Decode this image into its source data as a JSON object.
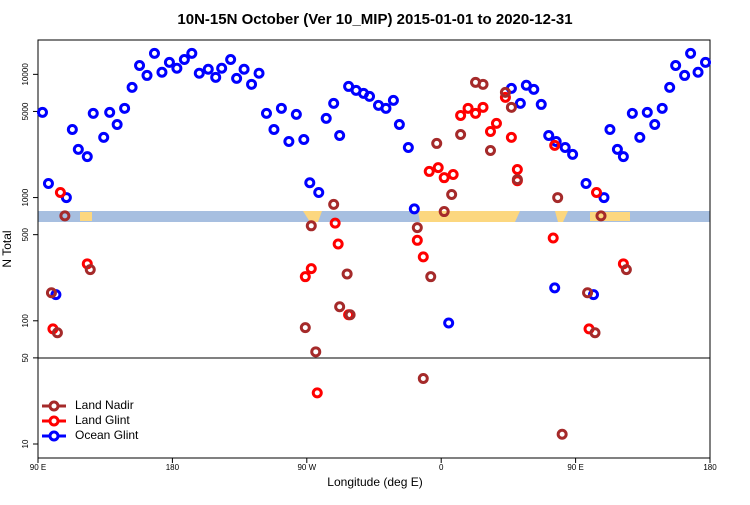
{
  "chart_data": {
    "type": "scatter",
    "title": "10N-15N October (Ver 10_MIP)   2015-01-01 to 2020-12-31",
    "x_label": "Longitude (deg E)",
    "y_label": "N Total",
    "log_y": true,
    "legend": "lower left",
    "xlim": [
      90,
      540
    ],
    "ylim": [
      7.7,
      19000
    ],
    "xticks": [
      {
        "value": 90,
        "label": "90 E"
      },
      180,
      {
        "value": 270,
        "label": "90 W"
      },
      {
        "value": 360,
        "label": "0"
      },
      {
        "value": 450,
        "label": "90 E"
      },
      {
        "value": 540,
        "label": "180"
      }
    ],
    "yticks": [
      10,
      50,
      100,
      500,
      1000,
      5000,
      10000
    ],
    "series": [
      {
        "name": "Land Nadir",
        "color": "#a52a2a",
        "x": [
          99,
          103,
          108,
          125,
          269,
          273,
          276,
          288,
          292,
          297,
          299,
          344,
          348,
          353,
          357,
          362,
          367,
          373,
          383,
          388,
          393,
          403,
          407,
          411,
          438,
          441,
          458,
          463,
          467,
          484
        ],
        "values": [
          169,
          80,
          710,
          260,
          88,
          590,
          56,
          880,
          130,
          240,
          112,
          570,
          34,
          228,
          2750,
          770,
          1060,
          3250,
          8600,
          8300,
          2410,
          7140,
          5400,
          1400,
          1000,
          12,
          169,
          80,
          710,
          260
        ]
      },
      {
        "name": "Land Glint",
        "color": "#ff0000",
        "x": [
          100,
          105,
          123,
          269,
          273,
          277,
          289,
          291,
          298,
          344,
          348,
          352,
          358,
          362,
          368,
          373,
          378,
          383,
          388,
          393,
          397,
          403,
          407,
          411,
          411,
          436,
          435,
          459,
          464,
          482
        ],
        "values": [
          86,
          1100,
          290,
          228,
          265,
          26,
          620,
          420,
          112,
          450,
          330,
          1630,
          1750,
          1450,
          1540,
          4640,
          5300,
          4820,
          5400,
          3440,
          4000,
          6500,
          3080,
          1690,
          1370,
          2650,
          470,
          86,
          1100,
          290
        ]
      },
      {
        "name": "Ocean Glint",
        "color": "#0000ff",
        "x": [
          93,
          97,
          102,
          109,
          113,
          117,
          123,
          127,
          134,
          138,
          143,
          148,
          153,
          158,
          163,
          168,
          173,
          178,
          183,
          188,
          193,
          198,
          204,
          209,
          213,
          219,
          223,
          228,
          233,
          238,
          243,
          248,
          253,
          258,
          263,
          268,
          272,
          278,
          283,
          288,
          292,
          298,
          303,
          308,
          312,
          318,
          323,
          328,
          332,
          338,
          342,
          365,
          407,
          413,
          417,
          422,
          427,
          432,
          436,
          437,
          443,
          448,
          457,
          462,
          469,
          473,
          478,
          482,
          488,
          493,
          498,
          503,
          508,
          513,
          517,
          523,
          527,
          532,
          537
        ],
        "values": [
          4910,
          1300,
          163,
          1000,
          3570,
          2460,
          2150,
          4820,
          3080,
          4910,
          3920,
          5300,
          7840,
          11800,
          9800,
          14800,
          10400,
          12500,
          11200,
          13200,
          14800,
          10200,
          11000,
          9460,
          11200,
          13200,
          9280,
          11000,
          8300,
          10200,
          4820,
          3570,
          5300,
          2850,
          4730,
          2960,
          1320,
          1100,
          4390,
          5810,
          3190,
          7980,
          7410,
          7010,
          6620,
          5600,
          5300,
          6150,
          3920,
          2550,
          810,
          96,
          7690,
          5810,
          8150,
          7550,
          5700,
          3190,
          185,
          2850,
          2550,
          2240,
          1300,
          163,
          1000,
          3570,
          2460,
          2150,
          4820,
          3080,
          4910,
          3920,
          5300,
          7840,
          11800,
          9800,
          14800,
          10400,
          12500
        ]
      }
    ]
  }
}
